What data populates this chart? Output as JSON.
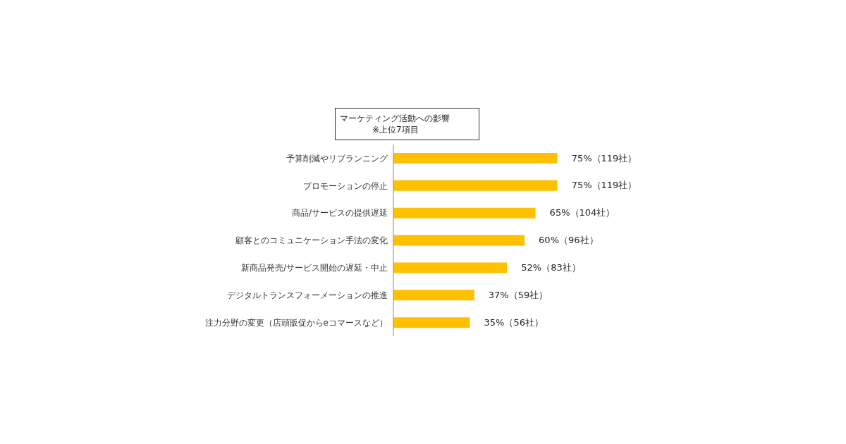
{
  "chart_data": {
    "type": "bar",
    "orientation": "horizontal",
    "title": "マーケティング活動への影響",
    "subtitle": "※上位7項目",
    "categories": [
      "予算削減やリプランニング",
      "プロモーションの停止",
      "商品/サービスの提供遅延",
      "顧客とのコミュニケーション手法の変化",
      "新商品発売/サービス開始の遅延・中止",
      "デジタルトランスフォーメーションの推進",
      "注力分野の変更（店頭販促からeコマースなど）"
    ],
    "values": [
      75,
      75,
      65,
      60,
      52,
      37,
      35
    ],
    "value_labels": [
      "75%（119社）",
      "75%（119社）",
      "65%（104社）",
      "60%（96社）",
      "52%（83社）",
      "37%（59社）",
      "35%（56社）"
    ],
    "color": "#ffc000"
  }
}
